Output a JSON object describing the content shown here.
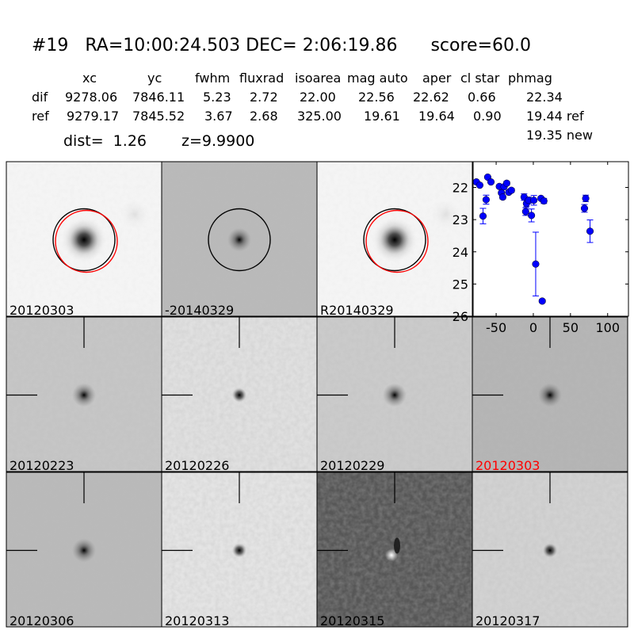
{
  "header": {
    "title": "#19   RA=10:00:24.503 DEC= 2:06:19.86      score=60.0",
    "columns": [
      "xc",
      "yc",
      "fwhm",
      "fluxrad",
      "isoarea",
      "mag auto",
      "aper",
      "cl star",
      "phmag"
    ],
    "rows": [
      {
        "label": "dif",
        "values": [
          "9278.06",
          "7846.11",
          "5.23",
          "2.72",
          "22.00",
          "22.56",
          "22.62",
          "0.66",
          "22.34"
        ]
      },
      {
        "label": "ref",
        "values": [
          "9279.17",
          "7845.52",
          "3.67",
          "2.68",
          "325.00",
          "19.61",
          "19.64",
          "0.90",
          "19.44 ref"
        ]
      }
    ],
    "phmag_new": "19.35 new",
    "dist": "dist=  1.26",
    "z": "z=9.9900"
  },
  "panels": [
    {
      "label": "20120303",
      "label_color": "#000000",
      "bg": "#f5f5f5",
      "star": "strong",
      "circles": [
        "black",
        "red"
      ]
    },
    {
      "label": "-20140329",
      "label_color": "#000000",
      "bg": "#b9b9b9",
      "star": "faint",
      "circles": [
        "black"
      ]
    },
    {
      "label": "R20140329",
      "label_color": "#000000",
      "bg": "#f5f5f5",
      "star": "strong",
      "circles": [
        "black",
        "red"
      ]
    },
    {
      "label": "20120223",
      "label_color": "#000000",
      "bg": "#c6c6c6",
      "star": "faint",
      "crosshair": true
    },
    {
      "label": "20120226",
      "label_color": "#000000",
      "bg": "#e0e0e0",
      "star": "point",
      "crosshair": true
    },
    {
      "label": "20120229",
      "label_color": "#000000",
      "bg": "#cbcbcb",
      "star": "faint",
      "crosshair": true
    },
    {
      "label": "20120303",
      "label_color": "#ff0000",
      "bg": "#b4b4b4",
      "star": "faint",
      "crosshair": true
    },
    {
      "label": "20120306",
      "label_color": "#000000",
      "bg": "#b9b9b9",
      "star": "faint",
      "crosshair": true
    },
    {
      "label": "20120313",
      "label_color": "#000000",
      "bg": "#e4e4e4",
      "star": "point",
      "crosshair": true
    },
    {
      "label": "20120315",
      "label_color": "#000000",
      "bg": "#575757",
      "star": "dipole",
      "crosshair": true
    },
    {
      "label": "20120317",
      "label_color": "#000000",
      "bg": "#d2d2d2",
      "star": "point",
      "crosshair": true
    }
  ],
  "chart_data": {
    "type": "scatter",
    "title": "",
    "xlabel": "",
    "ylabel": "",
    "xlim": [
      -81,
      128
    ],
    "ylim": [
      26,
      21.2
    ],
    "y_inverted": true,
    "xticks": [
      "-50",
      "0",
      "50",
      "100"
    ],
    "xtick_values": [
      -50,
      0,
      50,
      100
    ],
    "yticks": [
      "22",
      "23",
      "24",
      "25",
      "26"
    ],
    "ytick_values": [
      22,
      23,
      24,
      25,
      26
    ],
    "marker_color": "#0000ff",
    "points": [
      {
        "x": -76.6,
        "y": 21.83,
        "err": 0
      },
      {
        "x": -72.0,
        "y": 21.93,
        "err": 0
      },
      {
        "x": -67.7,
        "y": 22.89,
        "err": 0.24
      },
      {
        "x": -63.5,
        "y": 22.38,
        "err": 0.14
      },
      {
        "x": -61.4,
        "y": 21.68,
        "err": 0
      },
      {
        "x": -57.0,
        "y": 21.83,
        "err": 0
      },
      {
        "x": -45.7,
        "y": 21.97,
        "err": 0.05
      },
      {
        "x": -42.9,
        "y": 22.17,
        "err": 0.05
      },
      {
        "x": -41.1,
        "y": 22.3,
        "err": 0.06
      },
      {
        "x": -39.4,
        "y": 21.98,
        "err": 0.05
      },
      {
        "x": -35.8,
        "y": 21.87,
        "err": 0.06
      },
      {
        "x": -33.0,
        "y": 22.15,
        "err": 0.05
      },
      {
        "x": -29.5,
        "y": 22.09,
        "err": 0.06
      },
      {
        "x": -12.4,
        "y": 22.3,
        "err": 0.1
      },
      {
        "x": -10.3,
        "y": 22.75,
        "err": 0.12
      },
      {
        "x": -9.2,
        "y": 22.5,
        "err": 0.1
      },
      {
        "x": -6.4,
        "y": 22.4,
        "err": 0.1
      },
      {
        "x": -2.5,
        "y": 22.87,
        "err": 0.2
      },
      {
        "x": 0.7,
        "y": 22.4,
        "err": 0.15
      },
      {
        "x": 3.2,
        "y": 24.38,
        "err": 0.99
      },
      {
        "x": 10.3,
        "y": 22.34,
        "err": 0.05
      },
      {
        "x": 12.0,
        "y": 25.53,
        "err": 0.05
      },
      {
        "x": 14.2,
        "y": 22.42,
        "err": 0.08
      },
      {
        "x": 68.8,
        "y": 22.65,
        "err": 0.12
      },
      {
        "x": 70.5,
        "y": 22.34,
        "err": 0.1
      },
      {
        "x": 76.3,
        "y": 23.36,
        "err": 0.35
      }
    ]
  }
}
